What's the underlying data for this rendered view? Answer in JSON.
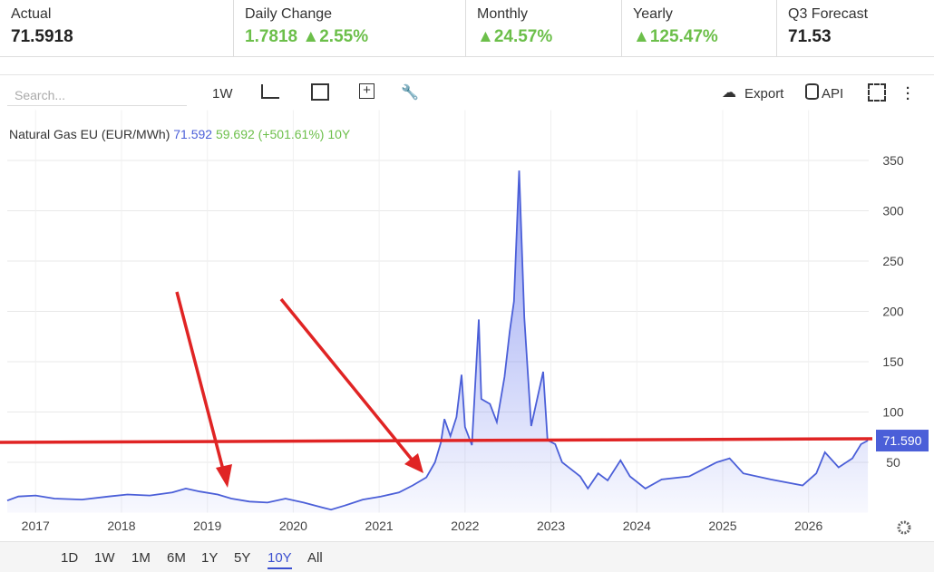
{
  "header": {
    "stats": [
      {
        "label": "Actual",
        "value": "71.5918"
      },
      {
        "label": "Daily Change",
        "value": "1.7818",
        "change": "2.55%"
      },
      {
        "label": "Monthly",
        "change": "24.57%"
      },
      {
        "label": "Yearly",
        "change": "125.47%"
      },
      {
        "label": "Q3 Forecast",
        "value": "71.53"
      }
    ]
  },
  "toolbar": {
    "search": "Search...",
    "period": "1W",
    "export": "Export",
    "api": "API"
  },
  "ranges": [
    "1D",
    "1W",
    "1M",
    "6M",
    "1Y",
    "5Y",
    "10Y",
    "All"
  ],
  "active_range": "10Y",
  "chart_data": {
    "type": "line",
    "legend": {
      "name": "Natural Gas EU (EUR/MWh)",
      "last": "71.592",
      "change": "59.692 (+501.61%)",
      "period": "10Y"
    },
    "price_badge": "71.590",
    "xlim": [
      2016.67,
      2026.7
    ],
    "xticks": [
      2017,
      2018,
      2019,
      2020,
      2021,
      2022,
      2023,
      2024,
      2025,
      2026
    ],
    "ylim": [
      0,
      400
    ],
    "yticks": [
      50,
      100,
      150,
      200,
      250,
      300,
      350
    ],
    "grid": true,
    "series": [
      {
        "name": "Natural Gas EU (EUR/MWh)",
        "color": "#4b5fd8",
        "x": [
          2016.67,
          2016.8,
          2017.0,
          2017.22,
          2017.54,
          2017.85,
          2018.07,
          2018.33,
          2018.59,
          2018.75,
          2018.91,
          2019.12,
          2019.28,
          2019.49,
          2019.7,
          2019.91,
          2020.12,
          2020.34,
          2020.44,
          2020.6,
          2020.81,
          2021.02,
          2021.23,
          2021.39,
          2021.55,
          2021.65,
          2021.72,
          2021.76,
          2021.83,
          2021.9,
          2021.96,
          2022.0,
          2022.08,
          2022.16,
          2022.19,
          2022.29,
          2022.37,
          2022.46,
          2022.52,
          2022.57,
          2022.63,
          2022.69,
          2022.77,
          2022.84,
          2022.91,
          2022.96,
          2023.05,
          2023.13,
          2023.34,
          2023.43,
          2023.55,
          2023.66,
          2023.81,
          2023.92,
          2024.1,
          2024.29,
          2024.61,
          2024.93,
          2025.08,
          2025.24,
          2025.56,
          2025.93,
          2026.09,
          2026.19,
          2026.35,
          2026.51,
          2026.61,
          2026.69
        ],
        "values": [
          12,
          16,
          17,
          14,
          13,
          16,
          18,
          17,
          20,
          24,
          21,
          18,
          14,
          11,
          10,
          14,
          10,
          5,
          3,
          7,
          13,
          16,
          20,
          27,
          35,
          50,
          70,
          93,
          76,
          95,
          137,
          85,
          67,
          192,
          113,
          108,
          90,
          135,
          180,
          210,
          340,
          194,
          86,
          113,
          140,
          72,
          68,
          50,
          36,
          24,
          39,
          32,
          52,
          36,
          24,
          33,
          36,
          50,
          54,
          39,
          33,
          27,
          39,
          60,
          45,
          54,
          68,
          71.59
        ]
      }
    ]
  }
}
